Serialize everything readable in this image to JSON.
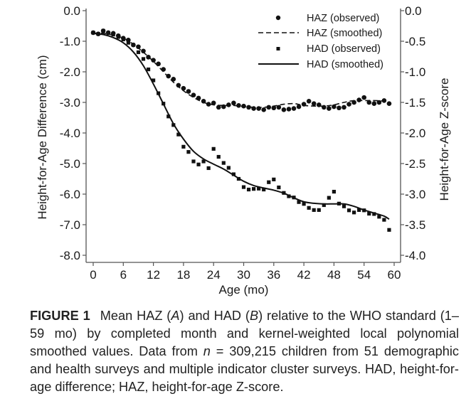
{
  "chart_data": {
    "type": "scatter",
    "title": "",
    "xlabel": "Age (mo)",
    "ylabel_left": "Height-for-Age Difference (cm)",
    "ylabel_right": "Height-for-Age Z-score",
    "xlim": [
      -2,
      62
    ],
    "xticks": [
      0,
      6,
      12,
      18,
      24,
      30,
      36,
      42,
      48,
      54,
      60
    ],
    "xtick_labels": [
      "0",
      "6",
      "12",
      "18",
      "24",
      "30",
      "36",
      "42",
      "48",
      "54",
      "60"
    ],
    "ylim_left": [
      -8.0,
      0.0
    ],
    "yticks_left": [
      0,
      -1,
      -2,
      -3,
      -4,
      -5,
      -6,
      -7,
      -8
    ],
    "ytick_labels_left": [
      "0.0",
      "-1.0",
      "-2.0",
      "-3.0",
      "-4.0",
      "-5.0",
      "-6.0",
      "-7.0",
      "-8.0"
    ],
    "ylim_right": [
      -4.0,
      0.0
    ],
    "yticks_right": [
      0,
      -0.5,
      -1,
      -1.5,
      -2,
      -2.5,
      -3,
      -3.5,
      -4
    ],
    "ytick_labels_right": [
      "0.0",
      "-0.5",
      "-1.0",
      "-1.5",
      "-2.0",
      "-2.5",
      "-3.0",
      "-3.5",
      "-4.0"
    ],
    "grid": false,
    "legend_position": "top-right",
    "legend": [
      {
        "label": "HAZ (observed)",
        "marker": "circle"
      },
      {
        "label": "HAZ (smoothed)",
        "marker": "dashed-line"
      },
      {
        "label": "HAD (observed)",
        "marker": "square"
      },
      {
        "label": "HAD (smoothed)",
        "marker": "solid-line"
      }
    ],
    "series": [
      {
        "name": "HAZ (observed)",
        "axis": "right",
        "kind": "points",
        "x": [
          0,
          1,
          2,
          3,
          4,
          5,
          6,
          7,
          8,
          9,
          10,
          11,
          12,
          13,
          14,
          15,
          16,
          17,
          18,
          19,
          20,
          21,
          22,
          23,
          24,
          25,
          26,
          27,
          28,
          29,
          30,
          31,
          32,
          33,
          34,
          35,
          36,
          37,
          38,
          39,
          40,
          41,
          42,
          43,
          44,
          45,
          46,
          47,
          48,
          49,
          50,
          51,
          52,
          53,
          54,
          55,
          56,
          57,
          58,
          59
        ],
        "y": [
          -0.36,
          -0.38,
          -0.33,
          -0.36,
          -0.37,
          -0.41,
          -0.45,
          -0.48,
          -0.56,
          -0.59,
          -0.66,
          -0.76,
          -0.81,
          -0.87,
          -0.96,
          -1.07,
          -1.12,
          -1.22,
          -1.27,
          -1.32,
          -1.38,
          -1.43,
          -1.48,
          -1.53,
          -1.51,
          -1.58,
          -1.57,
          -1.54,
          -1.51,
          -1.55,
          -1.56,
          -1.58,
          -1.6,
          -1.6,
          -1.62,
          -1.58,
          -1.59,
          -1.58,
          -1.62,
          -1.61,
          -1.6,
          -1.57,
          -1.53,
          -1.48,
          -1.52,
          -1.54,
          -1.58,
          -1.6,
          -1.57,
          -1.59,
          -1.58,
          -1.53,
          -1.5,
          -1.46,
          -1.42,
          -1.5,
          -1.52,
          -1.5,
          -1.47,
          -1.52
        ]
      },
      {
        "name": "HAZ (smoothed)",
        "axis": "right",
        "kind": "dashed-line",
        "x": [
          0,
          2,
          4,
          6,
          8,
          10,
          12,
          14,
          16,
          18,
          20,
          22,
          24,
          26,
          28,
          30,
          32,
          34,
          36,
          38,
          40,
          42,
          44,
          46,
          48,
          50,
          52,
          54,
          56,
          58,
          59
        ],
        "y": [
          -0.37,
          -0.37,
          -0.4,
          -0.45,
          -0.55,
          -0.68,
          -0.83,
          -1.0,
          -1.17,
          -1.31,
          -1.42,
          -1.5,
          -1.54,
          -1.55,
          -1.55,
          -1.57,
          -1.58,
          -1.58,
          -1.56,
          -1.53,
          -1.52,
          -1.55,
          -1.56,
          -1.56,
          -1.54,
          -1.5,
          -1.47,
          -1.47,
          -1.47,
          -1.48,
          -1.51
        ]
      },
      {
        "name": "HAD (observed)",
        "axis": "left",
        "kind": "points",
        "x": [
          0,
          1,
          2,
          3,
          4,
          5,
          6,
          7,
          8,
          9,
          10,
          11,
          12,
          13,
          14,
          15,
          16,
          17,
          18,
          19,
          20,
          21,
          22,
          23,
          24,
          25,
          26,
          27,
          28,
          29,
          30,
          31,
          32,
          33,
          34,
          35,
          36,
          37,
          38,
          39,
          40,
          41,
          42,
          43,
          44,
          45,
          46,
          47,
          48,
          49,
          50,
          51,
          52,
          53,
          54,
          55,
          56,
          57,
          58,
          59
        ],
        "y": [
          -0.72,
          -0.76,
          -0.66,
          -0.73,
          -0.78,
          -0.86,
          -0.94,
          -1.05,
          -1.12,
          -1.36,
          -1.58,
          -1.92,
          -2.28,
          -2.7,
          -3.04,
          -3.46,
          -3.74,
          -4.05,
          -4.45,
          -4.62,
          -4.93,
          -5.03,
          -4.93,
          -5.15,
          -4.52,
          -4.78,
          -4.98,
          -5.14,
          -5.35,
          -5.5,
          -5.77,
          -5.85,
          -5.83,
          -5.82,
          -5.85,
          -5.61,
          -5.52,
          -5.78,
          -5.96,
          -6.07,
          -6.11,
          -6.26,
          -6.32,
          -6.45,
          -6.52,
          -6.52,
          -6.36,
          -6.12,
          -5.92,
          -6.31,
          -6.4,
          -6.53,
          -6.6,
          -6.52,
          -6.53,
          -6.64,
          -6.65,
          -6.74,
          -6.84,
          -7.17
        ]
      },
      {
        "name": "HAD (smoothed)",
        "axis": "left",
        "kind": "solid-line",
        "x": [
          0,
          2,
          4,
          6,
          8,
          10,
          12,
          14,
          16,
          18,
          20,
          22,
          24,
          26,
          28,
          30,
          32,
          34,
          36,
          38,
          40,
          42,
          44,
          46,
          48,
          50,
          52,
          54,
          56,
          58,
          59
        ],
        "y": [
          -0.74,
          -0.78,
          -0.88,
          -1.05,
          -1.35,
          -1.8,
          -2.4,
          -3.05,
          -3.7,
          -4.2,
          -4.6,
          -4.85,
          -5.02,
          -5.18,
          -5.38,
          -5.58,
          -5.72,
          -5.8,
          -5.87,
          -5.97,
          -6.12,
          -6.25,
          -6.3,
          -6.32,
          -6.32,
          -6.32,
          -6.4,
          -6.52,
          -6.62,
          -6.72,
          -6.82
        ]
      }
    ]
  },
  "caption": {
    "figure_label": "FIGURE 1",
    "parts": [
      {
        "t": "Mean HAZ (",
        "i": false
      },
      {
        "t": "A",
        "i": true
      },
      {
        "t": ") and HAD (",
        "i": false
      },
      {
        "t": "B",
        "i": true
      },
      {
        "t": ") relative to the WHO standard (1–59 mo) by completed month and kernel-weighted local polynomial smoothed values. Data from ",
        "i": false
      },
      {
        "t": "n",
        "i": true
      },
      {
        "t": " = 309,215 children from 51 demographic and health surveys and multiple indicator cluster surveys. HAD, height-for-age difference; HAZ, height-for-age Z-score.",
        "i": false
      }
    ]
  }
}
